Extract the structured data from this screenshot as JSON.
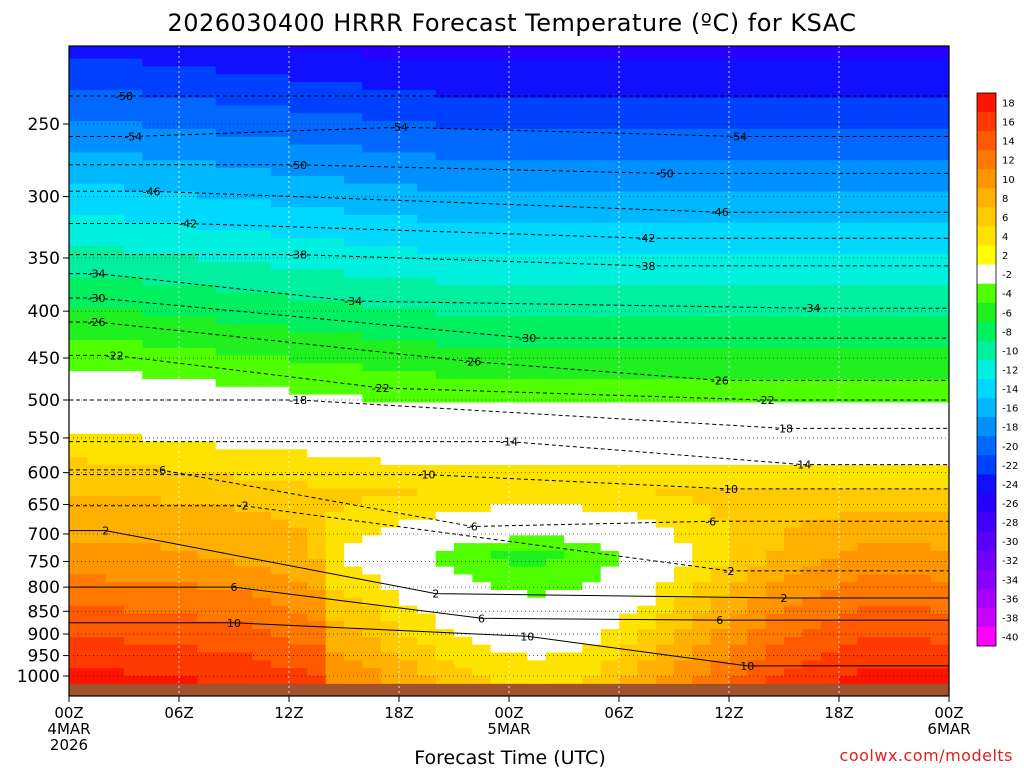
{
  "chart_data": {
    "type": "heatmap",
    "title": "2026030400 HRRR Forecast Temperature (ºC) for KSAC",
    "xlabel": "Forecast Time (UTC)",
    "credit": "coolwx.com/modelts",
    "x_ticks": [
      {
        "hour": 0,
        "label": "00Z",
        "sub1": "4MAR",
        "sub2": "2026"
      },
      {
        "hour": 6,
        "label": "06Z"
      },
      {
        "hour": 12,
        "label": "12Z"
      },
      {
        "hour": 18,
        "label": "18Z"
      },
      {
        "hour": 24,
        "label": "00Z",
        "sub1": "5MAR"
      },
      {
        "hour": 30,
        "label": "06Z"
      },
      {
        "hour": 36,
        "label": "12Z"
      },
      {
        "hour": 42,
        "label": "18Z"
      },
      {
        "hour": 48,
        "label": "00Z",
        "sub1": "6MAR"
      }
    ],
    "xlim": [
      0,
      48
    ],
    "y_axis": "pressure (hPa), log scale, inverted",
    "ylim": [
      1040,
      200
    ],
    "y_ticks": [
      250,
      300,
      350,
      400,
      450,
      500,
      550,
      600,
      650,
      700,
      750,
      800,
      850,
      900,
      950,
      1000
    ],
    "colorbar": {
      "levels": [
        18,
        16,
        14,
        12,
        10,
        8,
        6,
        4,
        2,
        -2,
        -4,
        -6,
        -8,
        -10,
        -12,
        -14,
        -16,
        -18,
        -20,
        -22,
        -24,
        -26,
        -28,
        -30,
        -32,
        -34,
        -36,
        -38,
        -40
      ],
      "colors": [
        "#ff1400",
        "#ff3a00",
        "#ff5a00",
        "#ff7800",
        "#ff9600",
        "#ffb000",
        "#ffcb00",
        "#ffe300",
        "#ffff00",
        "#ffffff",
        "#50ff00",
        "#20f020",
        "#00f060",
        "#00f0a0",
        "#00f0e0",
        "#00d8ff",
        "#00b8ff",
        "#0090ff",
        "#0068ff",
        "#0040ff",
        "#1010ff",
        "#2800ff",
        "#4000ff",
        "#5800ff",
        "#7000ff",
        "#8800ff",
        "#a800ff",
        "#c800ff",
        "#ff00ff"
      ]
    },
    "contour_labels": [
      {
        "v": "-58",
        "t": 3.0,
        "p": 233
      },
      {
        "v": "-54",
        "t": 3.5,
        "p": 258
      },
      {
        "v": "-54",
        "t": 18.0,
        "p": 252
      },
      {
        "v": "-54",
        "t": 36.5,
        "p": 258
      },
      {
        "v": "-50",
        "t": 12.5,
        "p": 277
      },
      {
        "v": "-50",
        "t": 32.5,
        "p": 283
      },
      {
        "v": "-46",
        "t": 4.5,
        "p": 296
      },
      {
        "v": "-46",
        "t": 35.5,
        "p": 312
      },
      {
        "v": "-42",
        "t": 6.5,
        "p": 321
      },
      {
        "v": "-42",
        "t": 31.5,
        "p": 333
      },
      {
        "v": "-38",
        "t": 12.5,
        "p": 347
      },
      {
        "v": "-38",
        "t": 31.5,
        "p": 357
      },
      {
        "v": "-34",
        "t": 1.5,
        "p": 364
      },
      {
        "v": "-34",
        "t": 15.5,
        "p": 390
      },
      {
        "v": "-34",
        "t": 40.5,
        "p": 397
      },
      {
        "v": "-30",
        "t": 1.5,
        "p": 387
      },
      {
        "v": "-30",
        "t": 25.0,
        "p": 428
      },
      {
        "v": "-26",
        "t": 1.5,
        "p": 411
      },
      {
        "v": "-26",
        "t": 22.0,
        "p": 454
      },
      {
        "v": "-26",
        "t": 35.5,
        "p": 476
      },
      {
        "v": "-22",
        "t": 2.5,
        "p": 447
      },
      {
        "v": "-22",
        "t": 17.0,
        "p": 485
      },
      {
        "v": "-22",
        "t": 38.0,
        "p": 500
      },
      {
        "v": "-18",
        "t": 12.5,
        "p": 500
      },
      {
        "v": "-18",
        "t": 39.0,
        "p": 537
      },
      {
        "v": "-14",
        "t": 24.0,
        "p": 555
      },
      {
        "v": "-14",
        "t": 40.0,
        "p": 588
      },
      {
        "v": "-10",
        "t": 19.5,
        "p": 603
      },
      {
        "v": "-10",
        "t": 36.0,
        "p": 625
      },
      {
        "v": "-6",
        "t": 5.0,
        "p": 596
      },
      {
        "v": "-6",
        "t": 22.0,
        "p": 687
      },
      {
        "v": "-6",
        "t": 35.0,
        "p": 678
      },
      {
        "v": "-2",
        "t": 9.5,
        "p": 652
      },
      {
        "v": "-2",
        "t": 36.0,
        "p": 768
      },
      {
        "v": "2",
        "t": 2.0,
        "p": 694
      },
      {
        "v": "2",
        "t": 20.0,
        "p": 813
      },
      {
        "v": "2",
        "t": 39.0,
        "p": 822
      },
      {
        "v": "6",
        "t": 9.0,
        "p": 800
      },
      {
        "v": "6",
        "t": 22.5,
        "p": 865
      },
      {
        "v": "6",
        "t": 35.5,
        "p": 869
      },
      {
        "v": "10",
        "t": 9.0,
        "p": 875
      },
      {
        "v": "10",
        "t": 25.0,
        "p": 905
      },
      {
        "v": "10",
        "t": 37.0,
        "p": 975
      }
    ]
  }
}
